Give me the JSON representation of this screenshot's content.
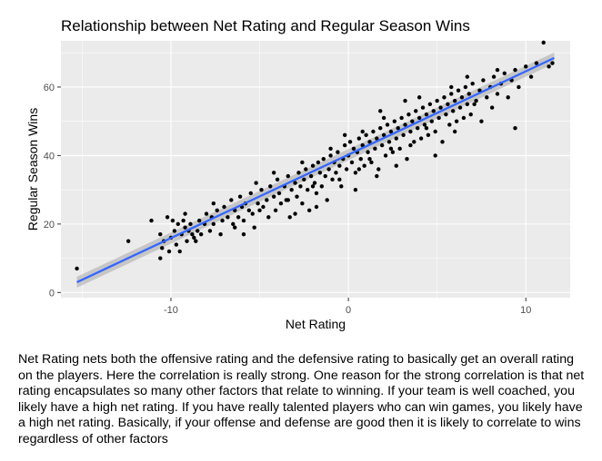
{
  "chart_data": {
    "type": "scatter",
    "title": "Relationship between Net Rating and Regular Season Wins",
    "xlabel": "Net Rating",
    "ylabel": "Regular Season Wins",
    "xlim": [
      -16.2,
      12.5
    ],
    "ylim": [
      -1.5,
      73.5
    ],
    "x_ticks": [
      -10,
      0,
      10
    ],
    "x_tick_labels": [
      "-10",
      "0",
      "10"
    ],
    "x_minor_ticks": [
      -15,
      -5,
      5
    ],
    "y_ticks": [
      0,
      20,
      40,
      60
    ],
    "y_tick_labels": [
      "0",
      "20",
      "40",
      "60"
    ],
    "y_minor_ticks": [
      10,
      30,
      50,
      70
    ],
    "grid": true,
    "legend": "none",
    "colors": {
      "panel_background": "#ebebeb",
      "grid_line": "#ffffff",
      "point": "#000000",
      "trend_line": "#3366ff",
      "trend_band": "#999999"
    },
    "trend_line": {
      "method": "linear",
      "x": [
        -15.3,
        11.6
      ],
      "y": [
        3,
        68.5
      ]
    },
    "series": [
      {
        "points": [
          [
            -15.3,
            7
          ],
          [
            -12.4,
            15
          ],
          [
            -11.1,
            21
          ],
          [
            -10.6,
            10
          ],
          [
            -10.5,
            13
          ],
          [
            -10.6,
            17
          ],
          [
            -10.4,
            15
          ],
          [
            -10.2,
            22
          ],
          [
            -10.0,
            16
          ],
          [
            -9.9,
            21
          ],
          [
            -9.8,
            18
          ],
          [
            -9.7,
            14
          ],
          [
            -9.6,
            20
          ],
          [
            -9.5,
            12
          ],
          [
            -9.4,
            17
          ],
          [
            -9.3,
            21
          ],
          [
            -9.2,
            19
          ],
          [
            -9.1,
            15
          ],
          [
            -9.0,
            18
          ],
          [
            -8.9,
            20
          ],
          [
            -8.8,
            17
          ],
          [
            -8.6,
            15
          ],
          [
            -8.5,
            18
          ],
          [
            -8.4,
            21
          ],
          [
            -8.3,
            17
          ],
          [
            -8.1,
            20
          ],
          [
            -8.0,
            23
          ],
          [
            -7.8,
            18
          ],
          [
            -7.7,
            22
          ],
          [
            -7.6,
            20
          ],
          [
            -7.4,
            24
          ],
          [
            -7.2,
            17
          ],
          [
            -7.1,
            21
          ],
          [
            -7.0,
            25
          ],
          [
            -6.8,
            22
          ],
          [
            -6.6,
            27
          ],
          [
            -6.5,
            20
          ],
          [
            -6.4,
            24
          ],
          [
            -6.2,
            22
          ],
          [
            -6.1,
            28
          ],
          [
            -6.0,
            25
          ],
          [
            -5.9,
            21
          ],
          [
            -5.8,
            26
          ],
          [
            -5.6,
            24
          ],
          [
            -5.5,
            29
          ],
          [
            -5.4,
            23
          ],
          [
            -5.3,
            19
          ],
          [
            -5.1,
            26
          ],
          [
            -5.0,
            24
          ],
          [
            -4.9,
            30
          ],
          [
            -4.8,
            25
          ],
          [
            -4.6,
            27
          ],
          [
            -4.5,
            22
          ],
          [
            -4.4,
            31
          ],
          [
            -4.2,
            28
          ],
          [
            -4.1,
            24
          ],
          [
            -4.0,
            33
          ],
          [
            -3.9,
            29
          ],
          [
            -3.8,
            26
          ],
          [
            -3.6,
            31
          ],
          [
            -3.5,
            27
          ],
          [
            -3.4,
            34
          ],
          [
            -3.3,
            22
          ],
          [
            -3.2,
            30
          ],
          [
            -3.0,
            32
          ],
          [
            -2.9,
            28
          ],
          [
            -2.8,
            35
          ],
          [
            -2.7,
            31
          ],
          [
            -2.6,
            26
          ],
          [
            -2.5,
            33
          ],
          [
            -2.4,
            36
          ],
          [
            -2.3,
            30
          ],
          [
            -2.2,
            24
          ],
          [
            -2.1,
            34
          ],
          [
            -2.0,
            37
          ],
          [
            -1.9,
            32
          ],
          [
            -1.8,
            29
          ],
          [
            -1.7,
            38
          ],
          [
            -1.6,
            35
          ],
          [
            -1.5,
            31
          ],
          [
            -1.4,
            39
          ],
          [
            -1.3,
            34
          ],
          [
            -1.2,
            27
          ],
          [
            -1.1,
            36
          ],
          [
            -1.0,
            40
          ],
          [
            -0.9,
            33
          ],
          [
            -0.8,
            38
          ],
          [
            -0.7,
            35
          ],
          [
            -0.6,
            41
          ],
          [
            -0.5,
            37
          ],
          [
            -0.4,
            31
          ],
          [
            -0.3,
            39
          ],
          [
            -0.2,
            43
          ],
          [
            -0.1,
            36
          ],
          [
            0.0,
            40
          ],
          [
            0.1,
            44
          ],
          [
            0.2,
            38
          ],
          [
            0.3,
            42
          ],
          [
            0.4,
            35
          ],
          [
            0.5,
            41
          ],
          [
            0.6,
            45
          ],
          [
            0.7,
            39
          ],
          [
            0.8,
            43
          ],
          [
            0.9,
            37
          ],
          [
            1.0,
            46
          ],
          [
            1.1,
            41
          ],
          [
            1.2,
            44
          ],
          [
            1.3,
            38
          ],
          [
            1.4,
            47
          ],
          [
            1.5,
            42
          ],
          [
            1.6,
            45
          ],
          [
            1.7,
            36
          ],
          [
            1.8,
            48
          ],
          [
            1.9,
            43
          ],
          [
            2.0,
            46
          ],
          [
            2.1,
            40
          ],
          [
            2.2,
            49
          ],
          [
            2.3,
            44
          ],
          [
            2.4,
            47
          ],
          [
            2.5,
            41
          ],
          [
            2.6,
            50
          ],
          [
            2.7,
            45
          ],
          [
            2.8,
            48
          ],
          [
            2.9,
            42
          ],
          [
            3.0,
            51
          ],
          [
            3.1,
            46
          ],
          [
            3.2,
            49
          ],
          [
            3.3,
            39
          ],
          [
            3.4,
            52
          ],
          [
            3.5,
            47
          ],
          [
            3.6,
            50
          ],
          [
            3.7,
            44
          ],
          [
            3.8,
            53
          ],
          [
            3.9,
            48
          ],
          [
            4.0,
            51
          ],
          [
            4.1,
            45
          ],
          [
            4.2,
            54
          ],
          [
            4.3,
            49
          ],
          [
            4.4,
            52
          ],
          [
            4.5,
            46
          ],
          [
            4.6,
            55
          ],
          [
            4.7,
            50
          ],
          [
            4.8,
            53
          ],
          [
            4.9,
            47
          ],
          [
            5.0,
            56
          ],
          [
            5.1,
            51
          ],
          [
            5.2,
            54
          ],
          [
            5.3,
            44
          ],
          [
            5.4,
            57
          ],
          [
            5.5,
            52
          ],
          [
            5.6,
            55
          ],
          [
            5.7,
            49
          ],
          [
            5.8,
            58
          ],
          [
            5.9,
            53
          ],
          [
            6.0,
            56
          ],
          [
            6.1,
            50
          ],
          [
            6.2,
            59
          ],
          [
            6.3,
            54
          ],
          [
            6.4,
            57
          ],
          [
            6.5,
            51
          ],
          [
            6.6,
            60
          ],
          [
            6.7,
            55
          ],
          [
            6.8,
            58
          ],
          [
            6.9,
            52
          ],
          [
            7.0,
            61
          ],
          [
            7.2,
            56
          ],
          [
            7.4,
            59
          ],
          [
            7.6,
            62
          ],
          [
            7.8,
            57
          ],
          [
            8.0,
            60
          ],
          [
            8.2,
            63
          ],
          [
            8.4,
            58
          ],
          [
            8.6,
            61
          ],
          [
            8.8,
            64
          ],
          [
            9.0,
            57
          ],
          [
            9.2,
            62
          ],
          [
            9.4,
            65
          ],
          [
            9.6,
            60
          ],
          [
            10.0,
            66
          ],
          [
            10.3,
            63
          ],
          [
            10.6,
            67
          ],
          [
            11.0,
            73
          ],
          [
            11.3,
            66
          ],
          [
            11.5,
            67
          ],
          [
            -3.4,
            27
          ],
          [
            -2.0,
            31
          ],
          [
            -0.5,
            33
          ],
          [
            0.6,
            36
          ],
          [
            1.2,
            39
          ],
          [
            2.4,
            42
          ],
          [
            3.5,
            43
          ],
          [
            4.4,
            48
          ],
          [
            -1.8,
            25
          ],
          [
            -6.4,
            19
          ],
          [
            -8.7,
            16
          ],
          [
            -10.1,
            12
          ],
          [
            7.1,
            55
          ],
          [
            8.1,
            54
          ],
          [
            9.4,
            48
          ],
          [
            -4.2,
            35
          ],
          [
            -2.6,
            38
          ],
          [
            -1.0,
            42
          ],
          [
            0.8,
            47
          ],
          [
            2.0,
            51
          ],
          [
            4.0,
            57
          ],
          [
            5.8,
            60
          ],
          [
            6.7,
            63
          ],
          [
            8.4,
            65
          ],
          [
            -0.2,
            46
          ],
          [
            1.8,
            53
          ],
          [
            3.2,
            56
          ],
          [
            -5.2,
            32
          ],
          [
            -7.6,
            26
          ],
          [
            -9.2,
            23
          ],
          [
            2.7,
            37
          ],
          [
            4.9,
            40
          ],
          [
            6.0,
            47
          ],
          [
            7.5,
            50
          ],
          [
            -3.0,
            23
          ],
          [
            -5.9,
            17
          ],
          [
            0.4,
            30
          ],
          [
            1.6,
            34
          ]
        ]
      }
    ]
  },
  "caption": "Net Rating nets both the offensive rating and the defensive rating to basically get an overall rating on the players. Here the correlation is really strong. One reason for the strong correlation is that net rating encapsulates so many other factors that relate to winning. If your team is well coached, you likely have a high net rating. If you have really talented players who can win games, you likely have a high net rating. Basically, if your offense and defense are good then it is likely to correlate to wins regardless of other factors"
}
